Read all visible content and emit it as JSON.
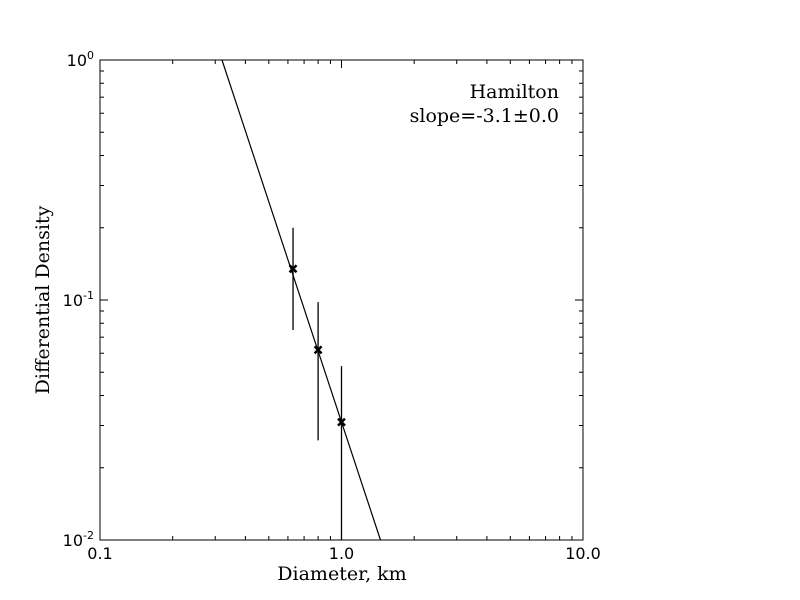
{
  "chart_data": {
    "type": "scatter",
    "xlabel": "Diameter, km",
    "ylabel": "Differential Density",
    "xscale": "log",
    "yscale": "log",
    "xlim": [
      0.1,
      10.0
    ],
    "ylim": [
      0.01,
      1.0
    ],
    "xticks": [
      {
        "value": 0.1,
        "label": "0.1"
      },
      {
        "value": 1.0,
        "label": "1.0"
      },
      {
        "value": 10.0,
        "label": "10.0"
      }
    ],
    "yticks": [
      {
        "value": 1.0,
        "base": "10",
        "exp": "0"
      },
      {
        "value": 0.1,
        "base": "10",
        "exp": "-1"
      },
      {
        "value": 0.01,
        "base": "10",
        "exp": "-2"
      }
    ],
    "points": [
      {
        "x": 0.63,
        "y": 0.135,
        "ylo": 0.075,
        "yhi": 0.2
      },
      {
        "x": 0.8,
        "y": 0.062,
        "ylo": 0.026,
        "yhi": 0.098
      },
      {
        "x": 1.0,
        "y": 0.031,
        "ylo": 0.01,
        "yhi": 0.053
      }
    ],
    "fit_line": {
      "slope": -3.1,
      "points": [
        [
          0.32,
          1.0
        ],
        [
          1.45,
          0.01
        ]
      ]
    },
    "annotation": {
      "line1": "Hamilton",
      "line2": "slope=-3.1±0.0"
    },
    "grid": false,
    "colors": {
      "markers": "#000000",
      "line": "#000000"
    }
  }
}
